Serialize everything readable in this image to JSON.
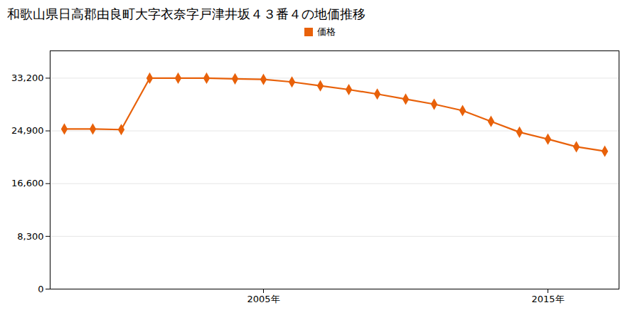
{
  "chart_data": {
    "type": "line",
    "title": "和歌山県日高郡由良町大字衣奈字戸津井坂４３番４の地価推移",
    "x": [
      1998,
      1999,
      2000,
      2001,
      2002,
      2003,
      2004,
      2005,
      2006,
      2007,
      2008,
      2009,
      2010,
      2011,
      2012,
      2013,
      2014,
      2015,
      2016,
      2017
    ],
    "series": [
      {
        "name": "価格",
        "color": "#e8610a",
        "marker": "diamond",
        "values": [
          25200,
          25200,
          25100,
          33200,
          33200,
          33200,
          33100,
          33000,
          32600,
          32000,
          31400,
          30700,
          29900,
          29100,
          28100,
          26400,
          24700,
          23600,
          22400,
          21700
        ]
      }
    ],
    "xlim": [
      1997.5,
      2017.5
    ],
    "xticks": [
      {
        "value": 2005,
        "label": "2005年"
      },
      {
        "value": 2015,
        "label": "2015年"
      }
    ],
    "ylim": [
      0,
      37500
    ],
    "yticks": [
      0,
      {
        "value": 8300,
        "label": "8,300"
      },
      {
        "value": 16600,
        "label": "16,600"
      },
      {
        "value": 24900,
        "label": "24,900"
      },
      {
        "value": 33200,
        "label": "33,200"
      }
    ],
    "grid": true,
    "legend": "top"
  }
}
